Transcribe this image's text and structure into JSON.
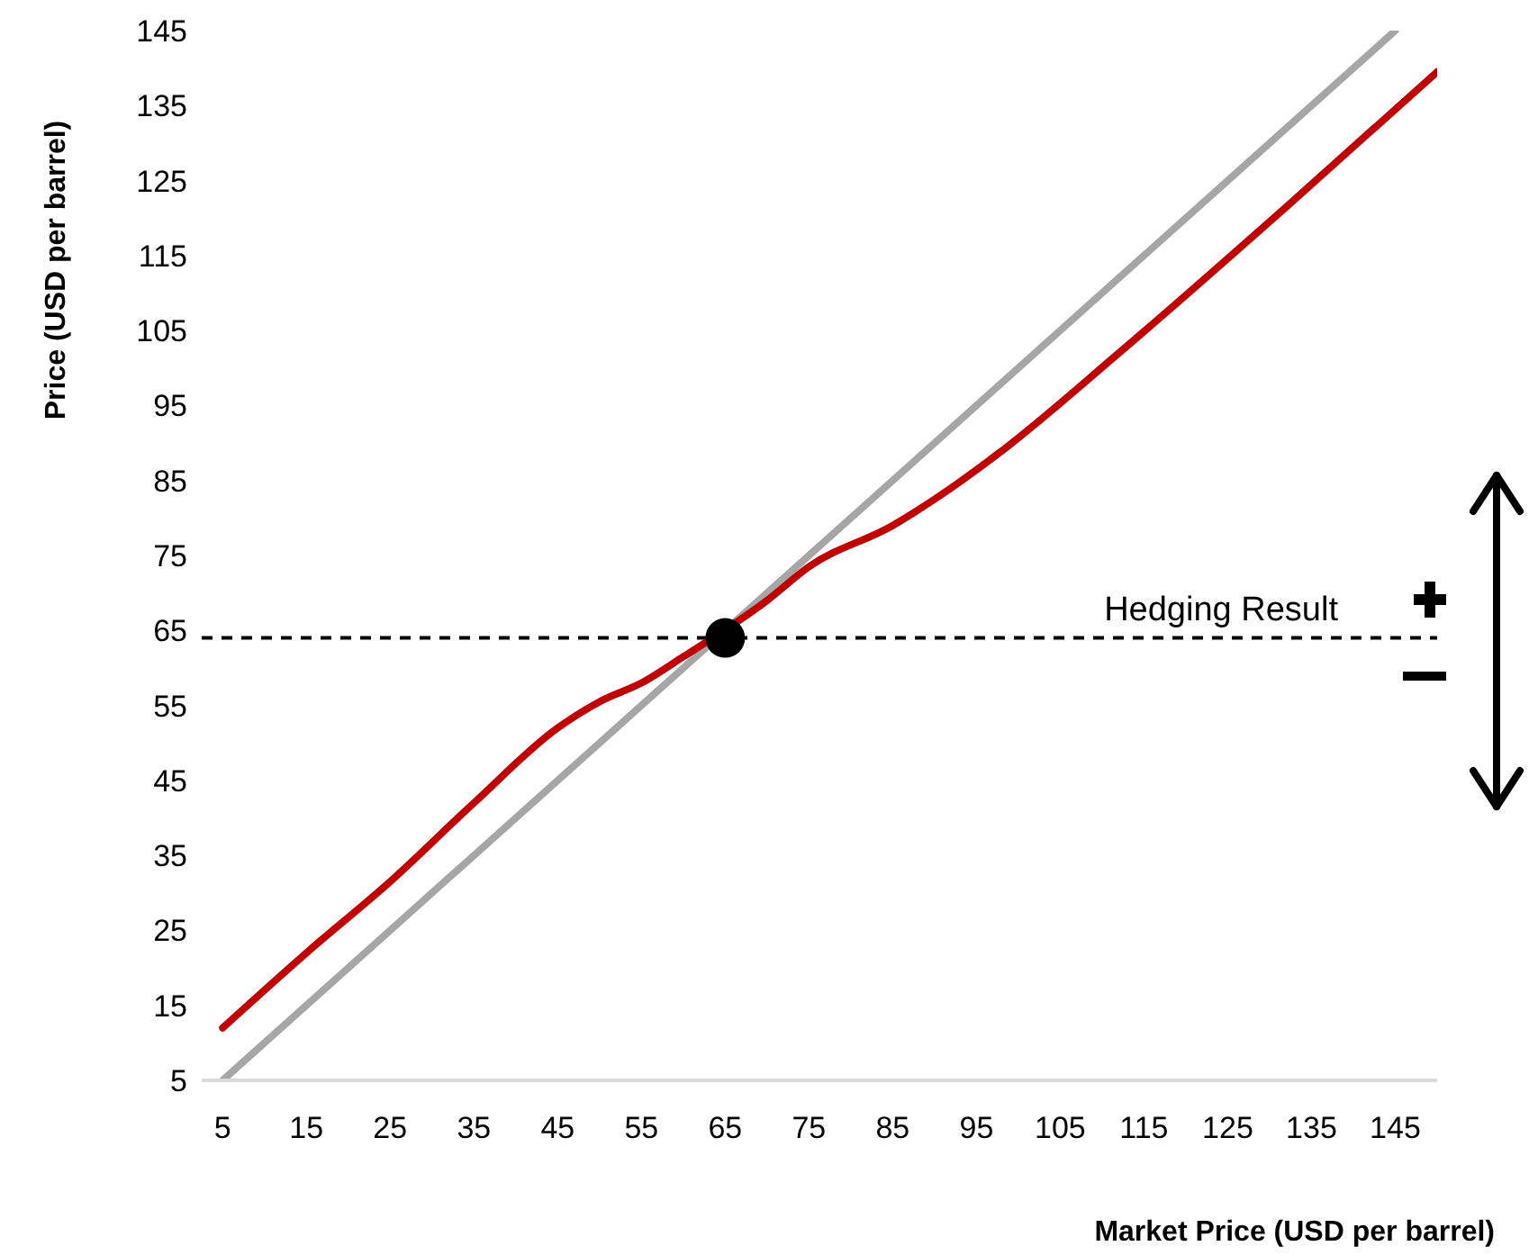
{
  "chart_data": {
    "type": "line",
    "xlabel": "Market Price (USD per barrel)",
    "ylabel": "Price (USD per barrel)",
    "xlim": [
      2.5,
      150
    ],
    "xticks": [
      5,
      15,
      25,
      35,
      45,
      55,
      65,
      75,
      85,
      95,
      105,
      115,
      125,
      135,
      145
    ],
    "ylim": [
      5,
      145
    ],
    "yticks": [
      5,
      15,
      25,
      35,
      45,
      55,
      65,
      75,
      85,
      95,
      105,
      115,
      125,
      135,
      145
    ],
    "marker": "none",
    "series": [
      {
        "color": "#a6a6a6",
        "x": [
          5,
          145
        ],
        "values": [
          5,
          145
        ]
      },
      {
        "color": "#c00000",
        "x": [
          5,
          15,
          25,
          35,
          45,
          50,
          55,
          60,
          70,
          75,
          85,
          90,
          97.5,
          112,
          132,
          150
        ],
        "values": [
          12,
          22,
          31.5,
          42,
          52,
          55.5,
          58,
          61.5,
          69,
          73.5,
          79,
          82.5,
          88.5,
          102,
          121.5,
          139.5
        ]
      },
      {
        "type": "scatter",
        "color": "#000000",
        "marker": "circle",
        "x": [
          65
        ],
        "values": [
          64
        ]
      }
    ],
    "ref_lines": [
      {
        "axis": "y",
        "value": 64,
        "label": "Hedging Result",
        "color": "#000000",
        "line_style": "dashed"
      }
    ]
  }
}
